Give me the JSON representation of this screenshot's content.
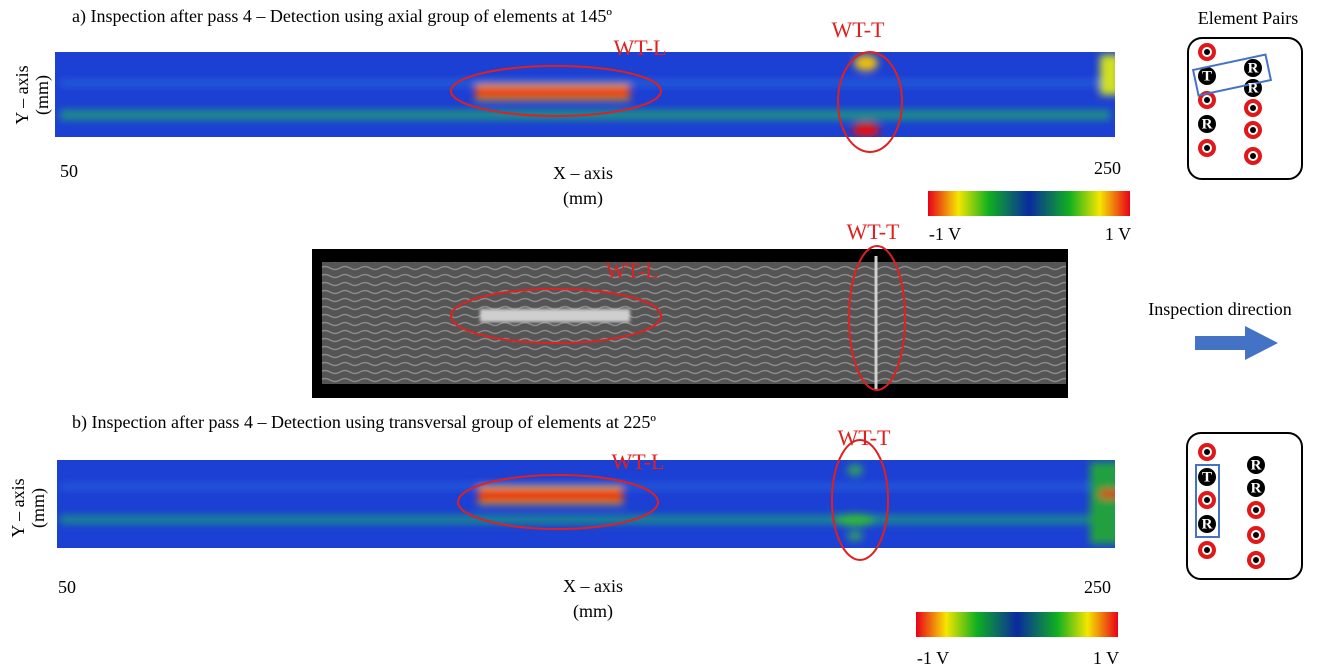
{
  "panel_a": {
    "title": "a) Inspection after pass 4 – Detection using axial group of elements at 145º",
    "y_label": "Y – axis",
    "y_unit": "(mm)",
    "x_label": "X – axis",
    "x_unit": "(mm)",
    "x_start": "50",
    "x_end": "250",
    "annotations": [
      "WT-L",
      "WT-T"
    ],
    "colorbar": [
      "-1 V",
      "1 V"
    ]
  },
  "photo": {
    "annotations": [
      "WT-L",
      "WT-T"
    ]
  },
  "element_pairs_a": {
    "title": "Element Pairs",
    "labels": [
      "T",
      "R",
      "R",
      "R"
    ]
  },
  "inspection": {
    "label": "Inspection direction"
  },
  "panel_b": {
    "title": "b) Inspection after pass 4 – Detection using transversal group of elements at 225º",
    "y_label": "Y – axis",
    "y_unit": "(mm)",
    "x_label": "X – axis",
    "x_unit": "(mm)",
    "x_start": "50",
    "x_end": "250",
    "annotations": [
      "WT-L",
      "WT-T"
    ],
    "colorbar": [
      "-1 V",
      "1 V"
    ]
  },
  "element_pairs_b": {
    "labels": [
      "T",
      "R",
      "R",
      "R"
    ]
  }
}
